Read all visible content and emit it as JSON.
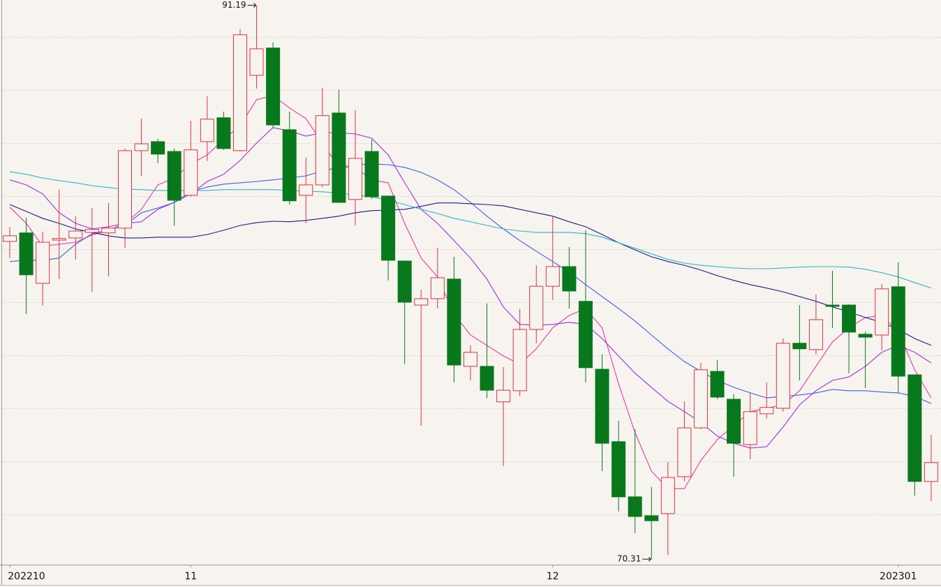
{
  "chart_data": {
    "type": "candlestick",
    "categories": [
      "202210",
      null,
      null,
      null,
      null,
      null,
      null,
      null,
      null,
      null,
      null,
      "11",
      null,
      null,
      null,
      null,
      null,
      null,
      null,
      null,
      null,
      null,
      null,
      null,
      null,
      null,
      null,
      null,
      null,
      null,
      null,
      null,
      null,
      "12",
      null,
      null,
      null,
      null,
      null,
      null,
      null,
      null,
      null,
      null,
      null,
      null,
      null,
      null,
      null,
      null,
      null,
      null,
      null,
      null,
      "202301",
      null,
      null
    ],
    "open": [
      82.29,
      82.61,
      80.71,
      82.34,
      82.42,
      82.63,
      82.61,
      82.79,
      85.71,
      86.05,
      85.68,
      84.03,
      86.05,
      86.95,
      85.71,
      88.55,
      89.58,
      86.5,
      84.03,
      84.42,
      87.13,
      83.87,
      85.68,
      84.0,
      81.55,
      79.89,
      80.13,
      80.87,
      77.58,
      77.58,
      76.24,
      76.66,
      78.97,
      80.6,
      81.34,
      80.03,
      77.47,
      74.74,
      72.66,
      71.95,
      72.03,
      73.42,
      75.26,
      77.39,
      76.34,
      74.63,
      75.79,
      76.0,
      78.45,
      78.21,
      79.89,
      79.89,
      78.79,
      78.76,
      80.58,
      77.26,
      73.24
    ],
    "high": [
      82.84,
      83.18,
      82.66,
      84.24,
      83.24,
      83.55,
      83.74,
      85.79,
      86.92,
      86.16,
      85.79,
      86.84,
      87.76,
      87.18,
      90.29,
      91.19,
      89.79,
      87.18,
      85.45,
      88.08,
      88.0,
      87.24,
      86.13,
      84.0,
      81.55,
      80.47,
      82.05,
      81.71,
      78.37,
      79.95,
      77.55,
      79.74,
      81.39,
      83.24,
      82.08,
      82.71,
      78.03,
      75.53,
      75.21,
      73.03,
      73.97,
      76.26,
      77.71,
      77.82,
      76.53,
      76.61,
      76.97,
      78.63,
      79.89,
      80.29,
      81.18,
      79.92,
      78.89,
      80.68,
      81.5,
      77.26,
      75.0
    ],
    "low": [
      81.66,
      79.55,
      79.87,
      80.87,
      81.61,
      80.39,
      80.97,
      82.05,
      84.76,
      85.24,
      82.89,
      83.97,
      85.32,
      85.74,
      85.68,
      88.05,
      86.58,
      83.68,
      82.97,
      84.34,
      83.76,
      82.89,
      83.89,
      80.82,
      77.66,
      75.34,
      79.76,
      76.97,
      77.05,
      76.39,
      73.82,
      76.45,
      78.45,
      80.08,
      79.76,
      76.97,
      73.63,
      72.11,
      71.29,
      70.31,
      70.47,
      73.24,
      75.21,
      76.34,
      73.42,
      74.08,
      75.61,
      75.87,
      77.05,
      78.03,
      79.03,
      77.32,
      76.76,
      78.18,
      76.58,
      72.71,
      72.5
    ],
    "close": [
      82.5,
      81.03,
      82.26,
      82.4,
      82.68,
      82.74,
      82.79,
      85.71,
      85.97,
      85.58,
      83.84,
      85.74,
      86.9,
      85.79,
      90.08,
      89.55,
      86.68,
      83.82,
      84.42,
      87.03,
      83.76,
      85.42,
      83.97,
      81.58,
      80.0,
      80.13,
      80.92,
      77.63,
      78.11,
      76.68,
      76.68,
      78.97,
      80.6,
      81.34,
      80.42,
      77.53,
      74.68,
      72.66,
      71.92,
      71.76,
      73.39,
      75.26,
      77.45,
      76.42,
      74.68,
      75.87,
      76.03,
      78.45,
      78.24,
      79.34,
      79.84,
      78.87,
      78.68,
      80.5,
      77.21,
      73.24,
      73.95
    ],
    "up_color": "#d8343f",
    "down_color": "#08781c",
    "lines": [
      {
        "color": "#e33aa6",
        "values": [
          83.58,
          82.97,
          82.11,
          82.18,
          82.26,
          82.53,
          82.71,
          82.97,
          83.5,
          84.42,
          84.68,
          85.21,
          85.55,
          86.13,
          86.66,
          87.63,
          87.79,
          87.32,
          86.92,
          86.0,
          85.08,
          85.08,
          84.61,
          84.5,
          82.97,
          81.66,
          80.95,
          79.55,
          78.76,
          78.37,
          77.97,
          77.66,
          78.24,
          79.03,
          79.5,
          79.76,
          79.03,
          76.92,
          75.08,
          73.63,
          72.97,
          72.97,
          74.03,
          74.82,
          75.34,
          75.87,
          76.0,
          76.13,
          76.66,
          77.58,
          78.5,
          79.03,
          79.42,
          79.5,
          78.89,
          77.45,
          76.39
        ]
      },
      {
        "color": "#9b30d9",
        "values": [
          84.61,
          84.42,
          84.08,
          83.37,
          82.97,
          82.76,
          82.84,
          82.97,
          83.03,
          83.5,
          83.76,
          84.08,
          84.55,
          84.82,
          85.34,
          86.0,
          86.58,
          86.45,
          86.26,
          86.39,
          86.39,
          86.34,
          86.18,
          85.55,
          84.5,
          83.5,
          82.97,
          82.32,
          81.66,
          80.87,
          79.82,
          79.16,
          79.13,
          79.16,
          79.24,
          79.16,
          78.63,
          77.97,
          77.32,
          76.79,
          76.26,
          75.87,
          75.47,
          74.95,
          74.68,
          74.5,
          74.55,
          75.29,
          76.13,
          76.66,
          77.05,
          77.18,
          77.58,
          78.11,
          78.37,
          78.11,
          77.71
        ]
      },
      {
        "color": "#3b60e8",
        "values": [
          81.53,
          81.58,
          81.58,
          81.66,
          82.18,
          82.58,
          82.71,
          82.89,
          83.37,
          83.55,
          83.76,
          84.16,
          84.34,
          84.45,
          84.5,
          84.55,
          84.61,
          84.68,
          84.76,
          84.95,
          85.08,
          85.18,
          85.21,
          85.18,
          85.08,
          84.89,
          84.61,
          84.24,
          83.76,
          83.24,
          82.76,
          82.32,
          81.92,
          81.53,
          81.13,
          80.66,
          80.21,
          79.76,
          79.29,
          78.76,
          78.24,
          77.76,
          77.39,
          77.05,
          76.79,
          76.58,
          76.39,
          76.45,
          76.5,
          76.58,
          76.71,
          76.66,
          76.66,
          76.61,
          76.58,
          76.45,
          76.18
        ]
      },
      {
        "color": "#1c1c8c",
        "values": [
          83.68,
          83.42,
          83.16,
          82.97,
          82.76,
          82.63,
          82.5,
          82.42,
          82.42,
          82.45,
          82.45,
          82.45,
          82.55,
          82.71,
          82.89,
          83.0,
          83.05,
          83.03,
          83.08,
          83.16,
          83.24,
          83.37,
          83.45,
          83.47,
          83.5,
          83.61,
          83.74,
          83.74,
          83.71,
          83.68,
          83.63,
          83.5,
          83.37,
          83.24,
          83.03,
          82.84,
          82.55,
          82.24,
          81.97,
          81.71,
          81.53,
          81.39,
          81.21,
          81.0,
          80.82,
          80.66,
          80.53,
          80.39,
          80.21,
          80.03,
          79.82,
          79.63,
          79.42,
          79.24,
          78.97,
          78.63,
          78.37
        ]
      },
      {
        "color": "#2fb5c6",
        "values": [
          84.92,
          84.82,
          84.68,
          84.58,
          84.5,
          84.39,
          84.32,
          84.26,
          84.24,
          84.21,
          84.21,
          84.21,
          84.21,
          84.24,
          84.24,
          84.24,
          84.24,
          84.21,
          84.18,
          84.16,
          84.11,
          84.05,
          83.97,
          83.84,
          83.68,
          83.5,
          83.34,
          83.16,
          83.03,
          82.89,
          82.76,
          82.68,
          82.63,
          82.63,
          82.63,
          82.58,
          82.45,
          82.24,
          82.03,
          81.82,
          81.61,
          81.47,
          81.39,
          81.34,
          81.29,
          81.26,
          81.26,
          81.29,
          81.32,
          81.34,
          81.34,
          81.32,
          81.24,
          81.11,
          80.95,
          80.74,
          80.53
        ]
      }
    ],
    "ylim": [
      70.13,
      91.39
    ],
    "yticks": [
      72,
      74,
      76,
      78,
      80,
      82,
      84,
      86,
      88,
      90
    ],
    "grid": true
  }
}
